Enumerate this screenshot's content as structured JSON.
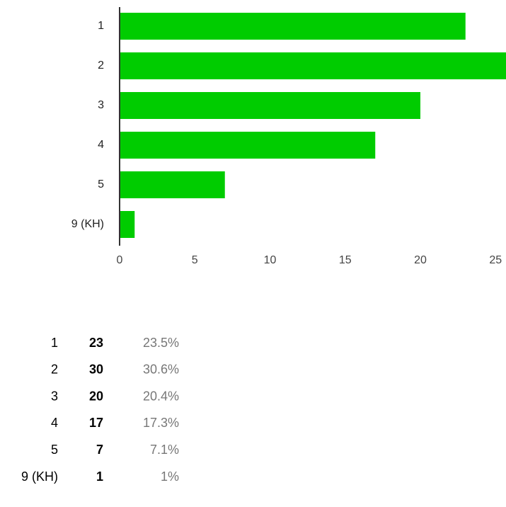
{
  "chart_data": {
    "type": "hbar",
    "categories": [
      "1",
      "2",
      "3",
      "4",
      "5",
      "9 (KH)"
    ],
    "values": [
      23,
      30,
      20,
      17,
      7,
      1
    ],
    "color": "#00cc00",
    "xlim": [
      0,
      30
    ],
    "xticks": [
      0,
      5,
      10,
      15,
      20,
      25
    ],
    "grid": false
  },
  "table": {
    "percentages": [
      "23.5%",
      "30.6%",
      "20.4%",
      "17.3%",
      "7.1%",
      "1%"
    ]
  }
}
